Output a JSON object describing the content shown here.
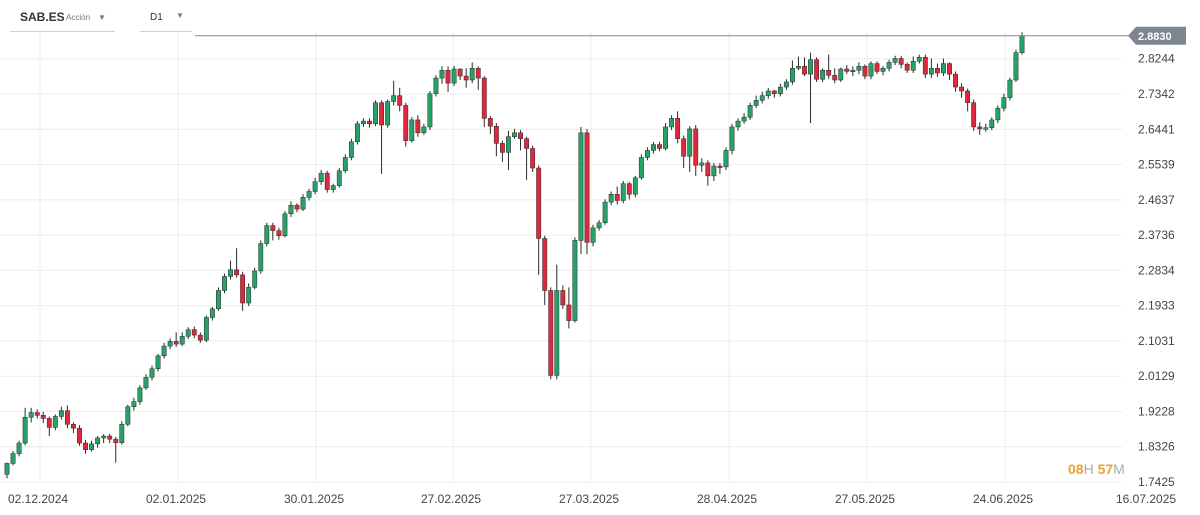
{
  "header": {
    "symbol": "SAB.ES",
    "asset_type": "Acción",
    "timeframe": "D1"
  },
  "countdown": {
    "hours": "08",
    "hours_unit": "H",
    "minutes": "57",
    "minutes_unit": "M"
  },
  "colors": {
    "up": "#26a269",
    "down": "#e0283c",
    "grid": "#ececec",
    "price_tag": "#7d8690"
  },
  "chart_data": {
    "type": "candlestick",
    "title": "",
    "y_ticks": [
      "2.8244",
      "2.7342",
      "2.6441",
      "2.5539",
      "2.4637",
      "2.3736",
      "2.2834",
      "2.1933",
      "2.1031",
      "2.0129",
      "1.9228",
      "1.8326",
      "1.7425"
    ],
    "x_ticks": [
      "02.12.2024",
      "02.01.2025",
      "30.01.2025",
      "27.02.2025",
      "27.03.2025",
      "28.04.2025",
      "27.05.2025",
      "24.06.2025",
      "16.07.2025"
    ],
    "ylim": [
      1.7425,
      2.8927
    ],
    "last_price": "2.8830",
    "grid": true,
    "candles": [
      [
        1.762,
        1.79,
        1.752,
        1.792
      ],
      [
        1.79,
        1.815,
        1.785,
        1.822
      ],
      [
        1.815,
        1.842,
        1.808,
        1.848
      ],
      [
        1.842,
        1.908,
        1.836,
        1.932
      ],
      [
        1.908,
        1.92,
        1.895,
        1.932
      ],
      [
        1.92,
        1.913,
        1.905,
        1.928
      ],
      [
        1.913,
        1.905,
        1.893,
        1.922
      ],
      [
        1.905,
        1.882,
        1.86,
        1.91
      ],
      [
        1.882,
        1.91,
        1.875,
        1.915
      ],
      [
        1.91,
        1.925,
        1.902,
        1.935
      ],
      [
        1.925,
        1.89,
        1.88,
        1.938
      ],
      [
        1.89,
        1.88,
        1.868,
        1.895
      ],
      [
        1.88,
        1.842,
        1.835,
        1.888
      ],
      [
        1.842,
        1.825,
        1.815,
        1.85
      ],
      [
        1.825,
        1.84,
        1.82,
        1.848
      ],
      [
        1.84,
        1.855,
        1.83,
        1.86
      ],
      [
        1.855,
        1.86,
        1.842,
        1.865
      ],
      [
        1.86,
        1.852,
        1.842,
        1.865
      ],
      [
        1.852,
        1.843,
        1.792,
        1.858
      ],
      [
        1.843,
        1.89,
        1.838,
        1.898
      ],
      [
        1.89,
        1.935,
        1.885,
        1.94
      ],
      [
        1.935,
        1.948,
        1.925,
        1.958
      ],
      [
        1.948,
        1.983,
        1.94,
        1.99
      ],
      [
        1.983,
        2.01,
        1.978,
        2.018
      ],
      [
        2.01,
        2.032,
        2.002,
        2.04
      ],
      [
        2.032,
        2.065,
        2.025,
        2.07
      ],
      [
        2.065,
        2.09,
        2.058,
        2.098
      ],
      [
        2.09,
        2.102,
        2.082,
        2.11
      ],
      [
        2.102,
        2.095,
        2.088,
        2.125
      ],
      [
        2.095,
        2.115,
        2.09,
        2.125
      ],
      [
        2.115,
        2.132,
        2.108,
        2.138
      ],
      [
        2.132,
        2.118,
        2.11,
        2.14
      ],
      [
        2.118,
        2.105,
        2.098,
        2.125
      ],
      [
        2.105,
        2.163,
        2.1,
        2.168
      ],
      [
        2.163,
        2.185,
        2.155,
        2.19
      ],
      [
        2.185,
        2.232,
        2.18,
        2.24
      ],
      [
        2.232,
        2.268,
        2.225,
        2.275
      ],
      [
        2.268,
        2.285,
        2.26,
        2.308
      ],
      [
        2.285,
        2.272,
        2.265,
        2.34
      ],
      [
        2.272,
        2.2,
        2.18,
        2.28
      ],
      [
        2.2,
        2.24,
        2.192,
        2.25
      ],
      [
        2.24,
        2.282,
        2.235,
        2.29
      ],
      [
        2.282,
        2.352,
        2.275,
        2.36
      ],
      [
        2.352,
        2.398,
        2.345,
        2.405
      ],
      [
        2.398,
        2.385,
        2.36,
        2.405
      ],
      [
        2.385,
        2.372,
        2.362,
        2.392
      ],
      [
        2.372,
        2.428,
        2.368,
        2.435
      ],
      [
        2.428,
        2.45,
        2.42,
        2.46
      ],
      [
        2.45,
        2.44,
        2.432,
        2.455
      ],
      [
        2.44,
        2.47,
        2.435,
        2.478
      ],
      [
        2.47,
        2.485,
        2.462,
        2.492
      ],
      [
        2.485,
        2.51,
        2.478,
        2.52
      ],
      [
        2.51,
        2.532,
        2.502,
        2.54
      ],
      [
        2.532,
        2.49,
        2.482,
        2.538
      ],
      [
        2.49,
        2.5,
        2.482,
        2.505
      ],
      [
        2.5,
        2.538,
        2.495,
        2.545
      ],
      [
        2.538,
        2.572,
        2.532,
        2.58
      ],
      [
        2.572,
        2.612,
        2.565,
        2.62
      ],
      [
        2.612,
        2.658,
        2.605,
        2.665
      ],
      [
        2.658,
        2.665,
        2.65,
        2.672
      ],
      [
        2.665,
        2.658,
        2.648,
        2.672
      ],
      [
        2.658,
        2.712,
        2.652,
        2.718
      ],
      [
        2.712,
        2.655,
        2.53,
        2.718
      ],
      [
        2.655,
        2.715,
        2.648,
        2.72
      ],
      [
        2.715,
        2.73,
        2.705,
        2.768
      ],
      [
        2.73,
        2.705,
        2.69,
        2.75
      ],
      [
        2.705,
        2.615,
        2.6,
        2.712
      ],
      [
        2.615,
        2.668,
        2.61,
        2.675
      ],
      [
        2.668,
        2.635,
        2.625,
        2.68
      ],
      [
        2.635,
        2.65,
        2.63,
        2.658
      ],
      [
        2.65,
        2.735,
        2.642,
        2.742
      ],
      [
        2.735,
        2.775,
        2.728,
        2.782
      ],
      [
        2.775,
        2.795,
        2.76,
        2.805
      ],
      [
        2.795,
        2.762,
        2.74,
        2.805
      ],
      [
        2.762,
        2.798,
        2.755,
        2.806
      ],
      [
        2.798,
        2.78,
        2.77,
        2.8
      ],
      [
        2.78,
        2.77,
        2.75,
        2.8
      ],
      [
        2.77,
        2.8,
        2.762,
        2.815
      ],
      [
        2.8,
        2.775,
        2.745,
        2.805
      ],
      [
        2.775,
        2.672,
        2.65,
        2.78
      ],
      [
        2.672,
        2.652,
        2.632,
        2.678
      ],
      [
        2.652,
        2.608,
        2.575,
        2.66
      ],
      [
        2.608,
        2.585,
        2.56,
        2.615
      ],
      [
        2.585,
        2.625,
        2.54,
        2.64
      ],
      [
        2.625,
        2.635,
        2.62,
        2.645
      ],
      [
        2.635,
        2.62,
        2.59,
        2.642
      ],
      [
        2.62,
        2.595,
        2.515,
        2.625
      ],
      [
        2.595,
        2.545,
        2.535,
        2.602
      ],
      [
        2.545,
        2.365,
        2.272,
        2.552
      ],
      [
        2.365,
        2.232,
        2.195,
        2.372
      ],
      [
        2.232,
        2.015,
        2.005,
        2.24
      ],
      [
        2.015,
        2.232,
        2.005,
        2.298
      ],
      [
        2.232,
        2.195,
        2.185,
        2.245
      ],
      [
        2.195,
        2.155,
        2.135,
        2.24
      ],
      [
        2.155,
        2.36,
        2.15,
        2.368
      ],
      [
        2.36,
        2.635,
        2.325,
        2.65
      ],
      [
        2.635,
        2.355,
        2.325,
        2.645
      ],
      [
        2.355,
        2.392,
        2.345,
        2.4
      ],
      [
        2.392,
        2.405,
        2.385,
        2.412
      ],
      [
        2.405,
        2.458,
        2.4,
        2.465
      ],
      [
        2.458,
        2.478,
        2.45,
        2.485
      ],
      [
        2.478,
        2.462,
        2.452,
        2.498
      ],
      [
        2.462,
        2.505,
        2.455,
        2.512
      ],
      [
        2.505,
        2.478,
        2.465,
        2.51
      ],
      [
        2.478,
        2.52,
        2.47,
        2.525
      ],
      [
        2.52,
        2.572,
        2.515,
        2.58
      ],
      [
        2.572,
        2.59,
        2.565,
        2.598
      ],
      [
        2.59,
        2.605,
        2.582,
        2.612
      ],
      [
        2.605,
        2.595,
        2.588,
        2.612
      ],
      [
        2.595,
        2.65,
        2.59,
        2.66
      ],
      [
        2.65,
        2.672,
        2.642,
        2.68
      ],
      [
        2.672,
        2.62,
        2.608,
        2.69
      ],
      [
        2.62,
        2.575,
        2.545,
        2.628
      ],
      [
        2.575,
        2.645,
        2.535,
        2.652
      ],
      [
        2.645,
        2.552,
        2.525,
        2.655
      ],
      [
        2.552,
        2.558,
        2.535,
        2.57
      ],
      [
        2.558,
        2.525,
        2.5,
        2.565
      ],
      [
        2.525,
        2.55,
        2.512,
        2.558
      ],
      [
        2.55,
        2.548,
        2.53,
        2.558
      ],
      [
        2.548,
        2.59,
        2.54,
        2.598
      ],
      [
        2.59,
        2.65,
        2.58,
        2.658
      ],
      [
        2.65,
        2.665,
        2.64,
        2.672
      ],
      [
        2.665,
        2.675,
        2.658,
        2.685
      ],
      [
        2.675,
        2.705,
        2.668,
        2.712
      ],
      [
        2.705,
        2.718,
        2.698,
        2.73
      ],
      [
        2.718,
        2.73,
        2.71,
        2.74
      ],
      [
        2.73,
        2.742,
        2.722,
        2.75
      ],
      [
        2.742,
        2.735,
        2.725,
        2.745
      ],
      [
        2.735,
        2.752,
        2.728,
        2.76
      ],
      [
        2.752,
        2.765,
        2.745,
        2.772
      ],
      [
        2.765,
        2.8,
        2.758,
        2.82
      ],
      [
        2.8,
        2.805,
        2.795,
        2.83
      ],
      [
        2.805,
        2.785,
        2.78,
        2.828
      ],
      [
        2.785,
        2.822,
        2.66,
        2.84
      ],
      [
        2.822,
        2.772,
        2.765,
        2.828
      ],
      [
        2.772,
        2.795,
        2.765,
        2.8
      ],
      [
        2.795,
        2.782,
        2.772,
        2.835
      ],
      [
        2.782,
        2.77,
        2.762,
        2.8
      ],
      [
        2.77,
        2.798,
        2.765,
        2.802
      ],
      [
        2.798,
        2.792,
        2.785,
        2.808
      ],
      [
        2.792,
        2.795,
        2.78,
        2.805
      ],
      [
        2.795,
        2.805,
        2.785,
        2.815
      ],
      [
        2.805,
        2.78,
        2.772,
        2.81
      ],
      [
        2.78,
        2.812,
        2.772,
        2.818
      ],
      [
        2.812,
        2.792,
        2.785,
        2.818
      ],
      [
        2.792,
        2.8,
        2.782,
        2.806
      ],
      [
        2.8,
        2.815,
        2.792,
        2.822
      ],
      [
        2.815,
        2.825,
        2.808,
        2.832
      ],
      [
        2.825,
        2.81,
        2.8,
        2.832
      ],
      [
        2.81,
        2.795,
        2.788,
        2.815
      ],
      [
        2.795,
        2.818,
        2.788,
        2.83
      ],
      [
        2.818,
        2.828,
        2.812,
        2.835
      ],
      [
        2.828,
        2.785,
        2.775,
        2.835
      ],
      [
        2.785,
        2.8,
        2.775,
        2.825
      ],
      [
        2.8,
        2.788,
        2.778,
        2.812
      ],
      [
        2.788,
        2.812,
        2.78,
        2.825
      ],
      [
        2.812,
        2.785,
        2.77,
        2.815
      ],
      [
        2.785,
        2.752,
        2.74,
        2.792
      ],
      [
        2.752,
        2.742,
        2.725,
        2.762
      ],
      [
        2.742,
        2.712,
        2.69,
        2.748
      ],
      [
        2.712,
        2.65,
        2.64,
        2.72
      ],
      [
        2.65,
        2.645,
        2.63,
        2.662
      ],
      [
        2.645,
        2.648,
        2.638,
        2.658
      ],
      [
        2.648,
        2.668,
        2.642,
        2.675
      ],
      [
        2.668,
        2.698,
        2.66,
        2.705
      ],
      [
        2.698,
        2.725,
        2.69,
        2.735
      ],
      [
        2.725,
        2.77,
        2.718,
        2.776
      ],
      [
        2.77,
        2.84,
        2.765,
        2.848
      ],
      [
        2.84,
        2.883,
        2.835,
        2.892
      ]
    ]
  }
}
